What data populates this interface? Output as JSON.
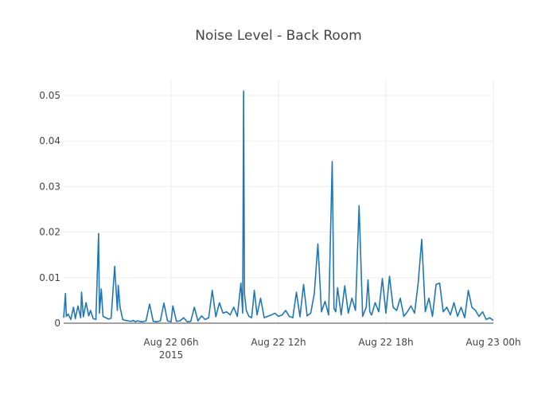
{
  "chart_data": {
    "type": "line",
    "title": "Noise Level - Back Room",
    "xlabel": "",
    "ylabel": "",
    "x_range_hours": [
      0,
      24
    ],
    "xlim": [
      "2015-08-22 00:00",
      "2015-08-23 00:00"
    ],
    "ylim": [
      0,
      0.0535
    ],
    "grid": true,
    "legend": "none",
    "color": "#1f77b4",
    "x_ticks": [
      {
        "at_hour": 6,
        "label": "Aug 22 06h",
        "sublabel": "2015"
      },
      {
        "at_hour": 12,
        "label": "Aug 22 12h",
        "sublabel": ""
      },
      {
        "at_hour": 18,
        "label": "Aug 22 18h",
        "sublabel": ""
      },
      {
        "at_hour": 24,
        "label": "Aug 23 00h",
        "sublabel": ""
      }
    ],
    "y_ticks": [
      {
        "value": 0,
        "label": "0"
      },
      {
        "value": 0.01,
        "label": "0.01"
      },
      {
        "value": 0.02,
        "label": "0.02"
      },
      {
        "value": 0.03,
        "label": "0.03"
      },
      {
        "value": 0.04,
        "label": "0.04"
      },
      {
        "value": 0.05,
        "label": "0.05"
      }
    ],
    "series": [
      {
        "x_hours": [
          0.0,
          0.1,
          0.15,
          0.25,
          0.4,
          0.55,
          0.65,
          0.8,
          0.95,
          1.0,
          1.1,
          1.25,
          1.4,
          1.5,
          1.65,
          1.8,
          1.95,
          2.0,
          2.1,
          2.2,
          2.35,
          2.5,
          2.65,
          2.85,
          3.0,
          3.05,
          3.15,
          3.3,
          3.45,
          3.6,
          3.75,
          3.9,
          4.0,
          4.1,
          4.25,
          4.4,
          4.6,
          4.8,
          5.0,
          5.2,
          5.4,
          5.6,
          5.8,
          6.0,
          6.1,
          6.3,
          6.5,
          6.7,
          6.9,
          7.1,
          7.3,
          7.5,
          7.7,
          7.9,
          8.1,
          8.3,
          8.5,
          8.7,
          8.9,
          9.1,
          9.3,
          9.5,
          9.7,
          9.9,
          10.0,
          10.05,
          10.1,
          10.2,
          10.35,
          10.5,
          10.65,
          10.8,
          11.0,
          11.2,
          11.4,
          11.6,
          11.8,
          12.0,
          12.2,
          12.4,
          12.6,
          12.8,
          13.0,
          13.2,
          13.4,
          13.6,
          13.8,
          14.0,
          14.2,
          14.4,
          14.6,
          14.8,
          15.0,
          15.1,
          15.2,
          15.3,
          15.5,
          15.7,
          15.9,
          16.1,
          16.3,
          16.5,
          16.7,
          16.9,
          17.0,
          17.1,
          17.2,
          17.4,
          17.6,
          17.8,
          18.0,
          18.2,
          18.4,
          18.6,
          18.8,
          19.0,
          19.2,
          19.4,
          19.6,
          19.8,
          20.0,
          20.2,
          20.4,
          20.6,
          20.8,
          21.0,
          21.2,
          21.4,
          21.6,
          21.8,
          22.0,
          22.2,
          22.4,
          22.6,
          22.8,
          23.0,
          23.2,
          23.4,
          23.6,
          23.8,
          24.0
        ],
        "values": [
          0.0012,
          0.0065,
          0.0015,
          0.002,
          0.0008,
          0.0035,
          0.001,
          0.0038,
          0.0012,
          0.0068,
          0.0014,
          0.0045,
          0.0016,
          0.0028,
          0.001,
          0.0008,
          0.0197,
          0.0022,
          0.0075,
          0.0015,
          0.0012,
          0.0009,
          0.0011,
          0.0125,
          0.0028,
          0.0083,
          0.0035,
          0.0008,
          0.0006,
          0.0005,
          0.0004,
          0.0006,
          0.0003,
          0.0005,
          0.0004,
          0.0003,
          0.0005,
          0.0042,
          0.0004,
          0.0003,
          0.0005,
          0.0044,
          0.0005,
          0.0003,
          0.0038,
          0.0004,
          0.0005,
          0.0012,
          0.0003,
          0.0004,
          0.0035,
          0.0005,
          0.0016,
          0.0008,
          0.0012,
          0.0072,
          0.0014,
          0.0045,
          0.0022,
          0.0025,
          0.0018,
          0.0035,
          0.0015,
          0.0088,
          0.0022,
          0.051,
          0.0065,
          0.0028,
          0.0015,
          0.0012,
          0.0072,
          0.0018,
          0.0055,
          0.0012,
          0.0015,
          0.0018,
          0.0022,
          0.0015,
          0.0018,
          0.0028,
          0.0015,
          0.0012,
          0.0068,
          0.0014,
          0.0085,
          0.0016,
          0.0022,
          0.0065,
          0.0174,
          0.0025,
          0.0048,
          0.0018,
          0.0355,
          0.0032,
          0.0025,
          0.0078,
          0.0018,
          0.0082,
          0.0022,
          0.0055,
          0.0028,
          0.0258,
          0.0015,
          0.0035,
          0.0095,
          0.0025,
          0.0018,
          0.0045,
          0.0025,
          0.0098,
          0.0022,
          0.0103,
          0.0035,
          0.0028,
          0.0055,
          0.0015,
          0.0025,
          0.0038,
          0.0022,
          0.0088,
          0.0184,
          0.0025,
          0.0055,
          0.0015,
          0.0085,
          0.0088,
          0.0025,
          0.0035,
          0.0018,
          0.0045,
          0.0015,
          0.0035,
          0.0012,
          0.0072,
          0.0035,
          0.0028,
          0.0015,
          0.0025,
          0.0008,
          0.0012,
          0.0006
        ]
      }
    ]
  }
}
